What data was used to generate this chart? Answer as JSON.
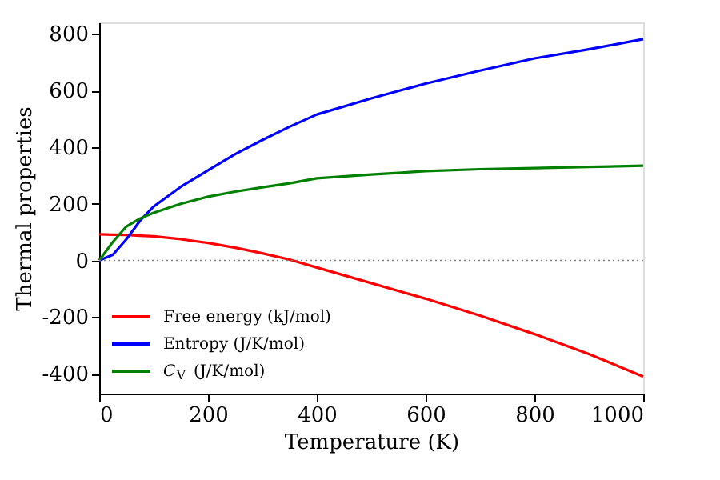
{
  "chart_data": {
    "type": "line",
    "xlabel": "Temperature (K)",
    "ylabel": "Thermal properties",
    "x": [
      0,
      25,
      50,
      75,
      100,
      150,
      200,
      250,
      300,
      350,
      400,
      500,
      600,
      700,
      800,
      900,
      1000
    ],
    "series": [
      {
        "name": "Free energy (kJ/mol)",
        "color": "#ff0000",
        "values": [
          92,
          91,
          90,
          87,
          85,
          75,
          62,
          45,
          25,
          3,
          -25,
          -80,
          -135,
          -195,
          -260,
          -330,
          -410
        ]
      },
      {
        "name": "Entropy (J/K/mol)",
        "color": "#0000ff",
        "values": [
          0,
          20,
          75,
          140,
          190,
          260,
          318,
          375,
          425,
          472,
          515,
          572,
          624,
          670,
          713,
          745,
          781
        ]
      },
      {
        "name": "C$_{V}$ (J/K/mol)",
        "color": "#008000",
        "values": [
          0,
          65,
          120,
          148,
          168,
          200,
          225,
          243,
          258,
          272,
          290,
          303,
          315,
          322,
          326,
          330,
          334
        ]
      }
    ],
    "xlim": [
      0,
      1000
    ],
    "ylim": [
      -470,
      840
    ],
    "xticks": [
      0,
      200,
      400,
      600,
      800,
      {
        "value": 1000,
        "label": "1000"
      }
    ],
    "yticks": [
      -400,
      -200,
      0,
      200,
      400,
      600,
      800
    ],
    "ref_lines": [
      {
        "axis": "y",
        "value": 0,
        "color": "#808080",
        "line_style": "dotted"
      }
    ],
    "legend": "bottom left",
    "grid": false,
    "marker": "none",
    "line_style": "solid"
  }
}
